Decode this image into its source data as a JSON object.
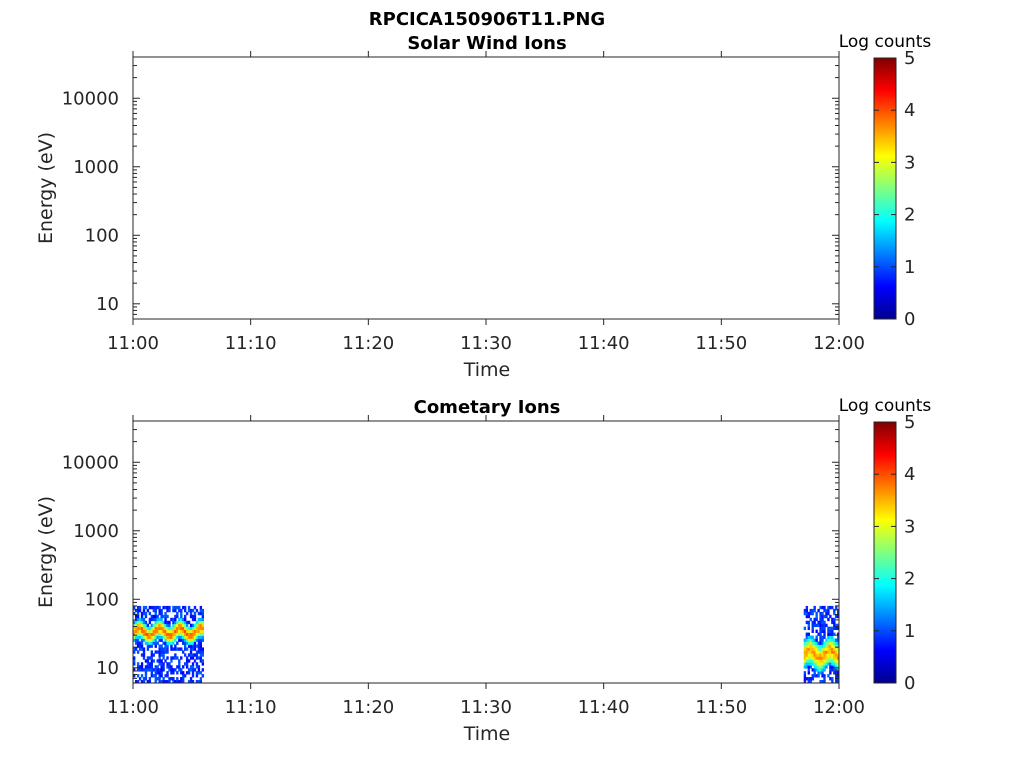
{
  "figure_title": "RPCICA150906T11.PNG",
  "colors": {
    "axis": "#262626",
    "colormap": [
      "#00008f",
      "#0000ff",
      "#0080ff",
      "#00ffff",
      "#80ff80",
      "#ffff00",
      "#ff8000",
      "#ff0000",
      "#800000"
    ]
  },
  "chart_data": [
    {
      "type": "heatmap",
      "title": "Solar Wind Ions",
      "xlabel": "Time",
      "ylabel": "Energy (eV)",
      "x_ticks": [
        "11:00",
        "11:10",
        "11:20",
        "11:30",
        "11:40",
        "11:50",
        "12:00"
      ],
      "y_ticks": [
        "10",
        "100",
        "1000",
        "10000"
      ],
      "y_scale": "log",
      "xlim": [
        "11:00",
        "12:00"
      ],
      "ylim": [
        6,
        40000
      ],
      "colorbar": {
        "title": "Log counts",
        "ticks": [
          "0",
          "1",
          "2",
          "3",
          "4",
          "5"
        ],
        "range": [
          0,
          5
        ]
      },
      "regions": []
    },
    {
      "type": "heatmap",
      "title": "Cometary Ions",
      "xlabel": "Time",
      "ylabel": "Energy (eV)",
      "x_ticks": [
        "11:00",
        "11:10",
        "11:20",
        "11:30",
        "11:40",
        "11:50",
        "12:00"
      ],
      "y_ticks": [
        "10",
        "100",
        "1000",
        "10000"
      ],
      "y_scale": "log",
      "xlim": [
        "11:00",
        "12:00"
      ],
      "ylim": [
        6,
        40000
      ],
      "colorbar": {
        "title": "Log counts",
        "ticks": [
          "0",
          "1",
          "2",
          "3",
          "4",
          "5"
        ],
        "range": [
          0,
          5
        ]
      },
      "regions": [
        {
          "start": "11:00",
          "end": "11:06",
          "energy_range_eV": [
            6,
            80
          ],
          "peak_energy_eV": [
            25,
            45
          ],
          "peak_log_counts": 3.8
        },
        {
          "start": "11:57",
          "end": "12:00",
          "energy_range_eV": [
            6,
            80
          ],
          "peak_energy_eV": [
            10,
            25
          ],
          "peak_log_counts": 3.6
        }
      ]
    }
  ]
}
